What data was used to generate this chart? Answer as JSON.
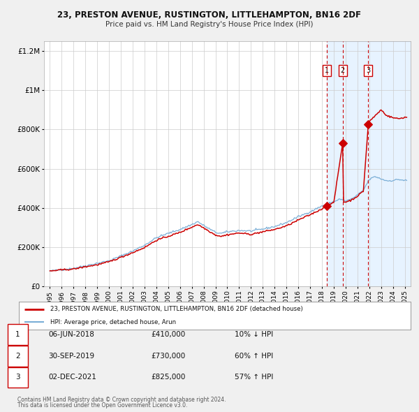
{
  "title": "23, PRESTON AVENUE, RUSTINGTON, LITTLEHAMPTON, BN16 2DF",
  "subtitle": "Price paid vs. HM Land Registry's House Price Index (HPI)",
  "legend_line1": "23, PRESTON AVENUE, RUSTINGTON, LITTLEHAMPTON, BN16 2DF (detached house)",
  "legend_line2": "HPI: Average price, detached house, Arun",
  "footer1": "Contains HM Land Registry data © Crown copyright and database right 2024.",
  "footer2": "This data is licensed under the Open Government Licence v3.0.",
  "sale_color": "#cc0000",
  "hpi_color": "#7aaed6",
  "shade_color": "#ddeeff",
  "background_color": "#f0f0f0",
  "plot_bg": "#ffffff",
  "grid_color": "#cccccc",
  "sales": [
    {
      "num": 1,
      "date": "06-JUN-2018",
      "price": 410000,
      "pct": "10% ↓ HPI",
      "x": 2018.44
    },
    {
      "num": 2,
      "date": "30-SEP-2019",
      "price": 730000,
      "pct": "60% ↑ HPI",
      "x": 2019.75
    },
    {
      "num": 3,
      "date": "02-DEC-2021",
      "price": 825000,
      "pct": "57% ↑ HPI",
      "x": 2021.92
    }
  ],
  "ylim": [
    0,
    1250000
  ],
  "xlim": [
    1994.5,
    2025.5
  ],
  "yticks": [
    0,
    200000,
    400000,
    600000,
    800000,
    1000000,
    1200000
  ],
  "ytick_labels": [
    "£0",
    "£200K",
    "£400K",
    "£600K",
    "£800K",
    "£1M",
    "£1.2M"
  ],
  "table_rows": [
    {
      "num": "1",
      "date": "06-JUN-2018",
      "price": "£410,000",
      "pct": "10% ↓ HPI"
    },
    {
      "num": "2",
      "date": "30-SEP-2019",
      "price": "£730,000",
      "pct": "60% ↑ HPI"
    },
    {
      "num": "3",
      "date": "02-DEC-2021",
      "price": "£825,000",
      "pct": "57% ↑ HPI"
    }
  ]
}
